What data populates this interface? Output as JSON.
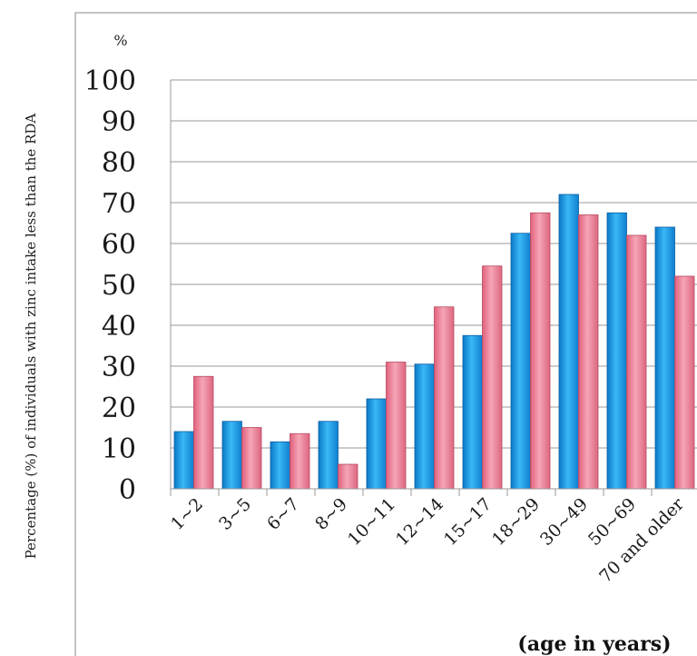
{
  "chart_data": {
    "type": "bar",
    "title": "",
    "ylabel": "Percentage (%) of individuals with zinc intake less than the RDA",
    "unit_label": "%",
    "xlabel": "(age in years)",
    "ylim": [
      0,
      100
    ],
    "yticks": [
      0,
      10,
      20,
      30,
      40,
      50,
      60,
      70,
      80,
      90,
      100
    ],
    "grid": true,
    "legend": "none",
    "categories": [
      "1~2",
      "3~5",
      "6~7",
      "8~9",
      "10~11",
      "12~14",
      "15~17",
      "18~29",
      "30~49",
      "50~69",
      "70 and older"
    ],
    "series": [
      {
        "color": "#1e9ee6",
        "values": [
          14,
          16.5,
          11.5,
          16.5,
          22,
          30.5,
          37.5,
          62.5,
          72,
          67.5,
          64
        ]
      },
      {
        "color": "#f08ca0",
        "values": [
          27.5,
          15,
          13.5,
          6,
          31,
          44.5,
          54.5,
          67.5,
          67,
          62,
          52
        ]
      }
    ]
  }
}
